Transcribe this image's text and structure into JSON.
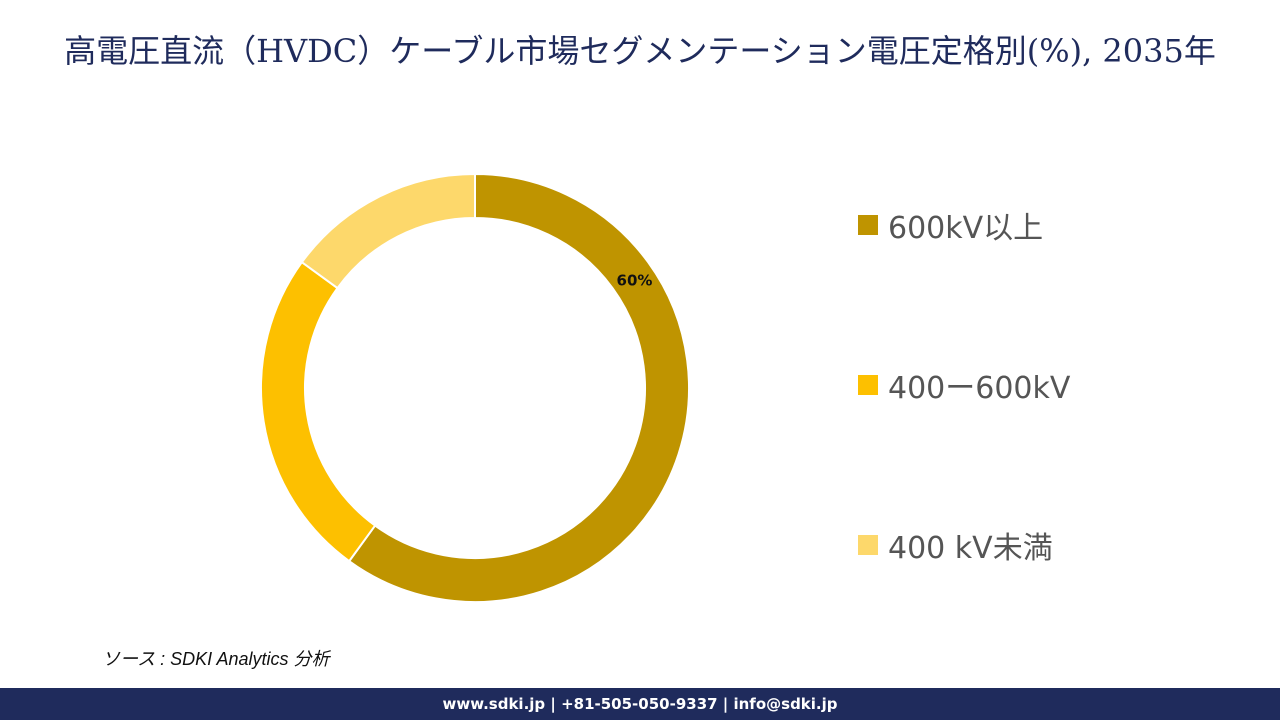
{
  "title": "高電圧直流（HVDC）ケーブル市場セグメンテーション電圧定格別(%), 2035年",
  "source": "ソース : SDKI Analytics 分析",
  "footer": "www.sdki.jp | +81-505-050-9337 | info@sdki.jp",
  "chart_data": {
    "type": "pie",
    "donut": true,
    "title": "高電圧直流（HVDC）ケーブル市場セグメンテーション電圧定格別(%), 2035年",
    "legend_position": "right",
    "categories": [
      "600kV以上",
      "400ー600kV",
      "400 kV未満"
    ],
    "values": [
      60,
      25,
      15
    ],
    "colors": [
      "#bf9400",
      "#fdc000",
      "#fdd86b"
    ],
    "data_labels": [
      "60%",
      null,
      null
    ]
  }
}
